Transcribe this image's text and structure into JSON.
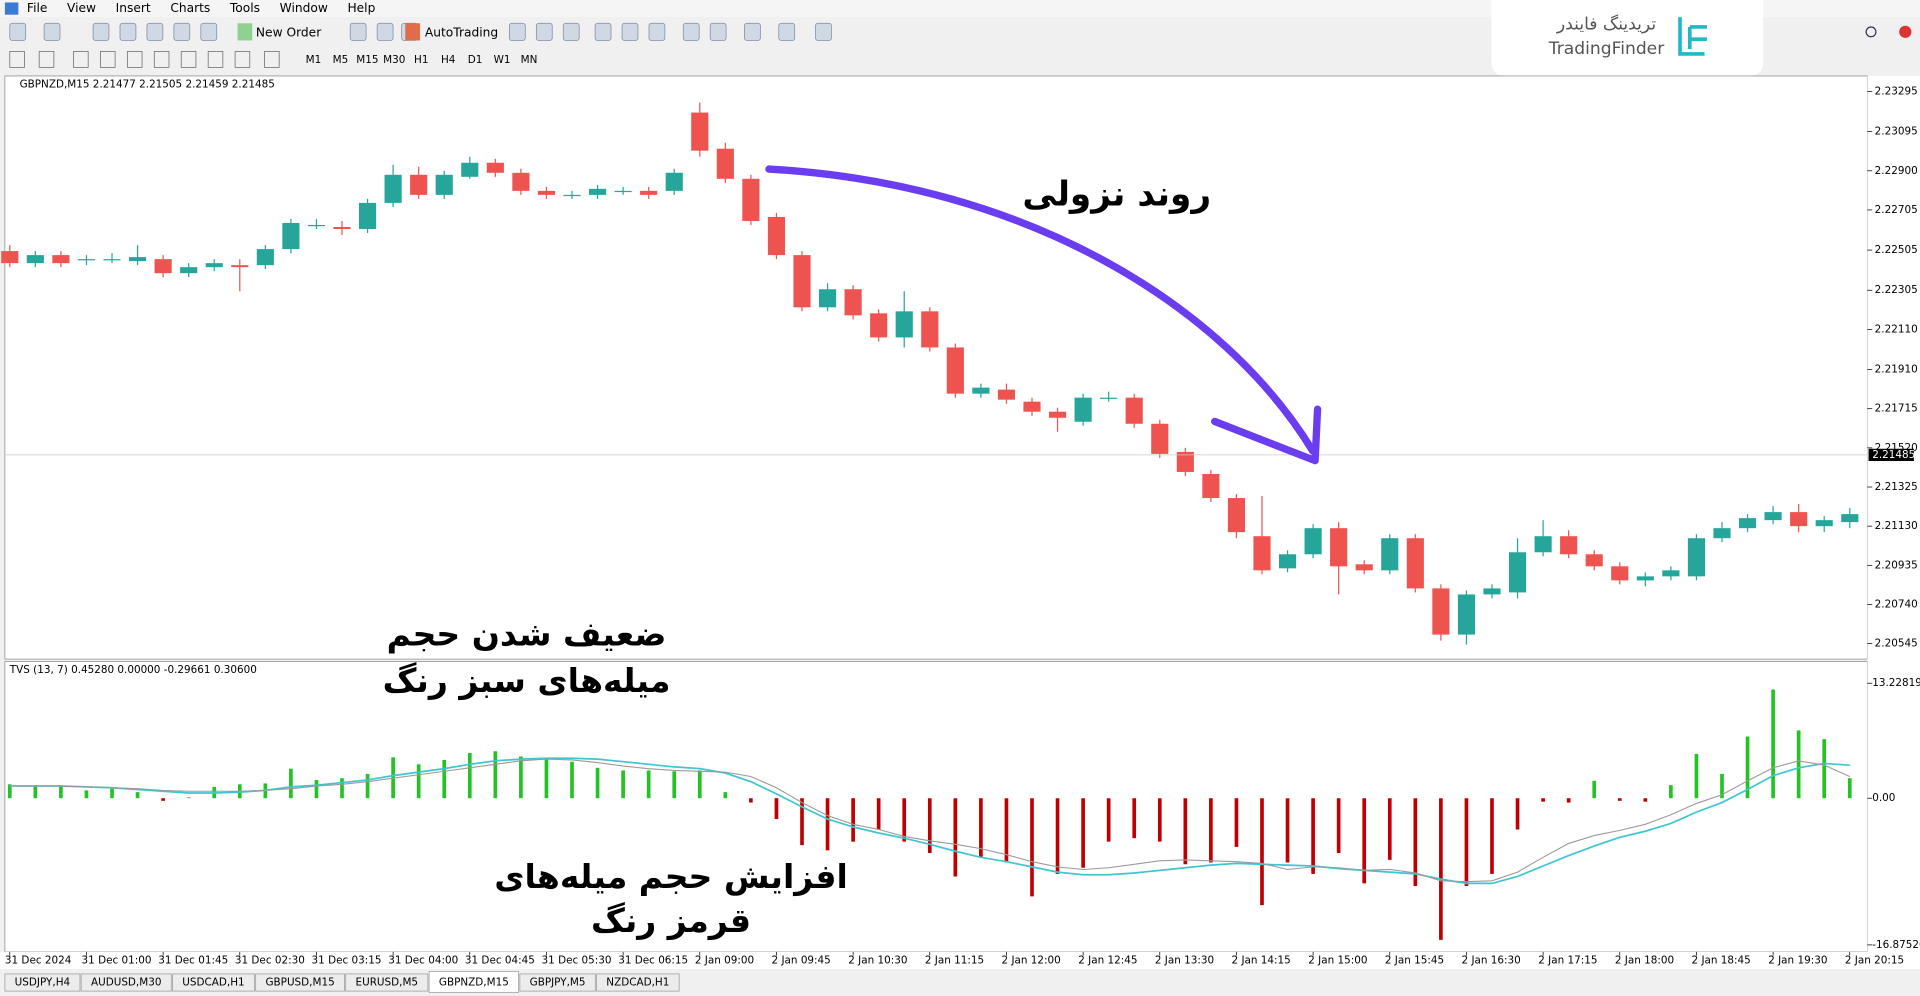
{
  "menu": [
    "File",
    "View",
    "Insert",
    "Charts",
    "Tools",
    "Window",
    "Help"
  ],
  "toolbar": {
    "new_order": "New Order",
    "auto_trading": "AutoTrading",
    "timeframes": [
      "M1",
      "M5",
      "M15",
      "M30",
      "H1",
      "H4",
      "D1",
      "W1",
      "MN"
    ]
  },
  "logo": {
    "fa": "تریدینگ فایندر",
    "en": "TradingFinder"
  },
  "chart_data": [
    {
      "type": "candlestick",
      "title": "GBPNZD,M15  2.21477 2.21505 2.21459 2.21485",
      "categories": [
        "31 Dec 2024",
        null,
        null,
        "31 Dec 01:00",
        null,
        null,
        "31 Dec 01:45",
        null,
        null,
        "31 Dec 02:30",
        null,
        null,
        "31 Dec 03:15",
        null,
        null,
        "31 Dec 04:00",
        null,
        null,
        "31 Dec 04:45",
        null,
        null,
        "31 Dec 05:30",
        null,
        null,
        "31 Dec 06:15",
        null,
        null,
        "2 Jan 09:00",
        null,
        null,
        "2 Jan 09:45",
        null,
        null,
        "2 Jan 10:30",
        null,
        null,
        "2 Jan 11:15",
        null,
        null,
        "2 Jan 12:00",
        null,
        null,
        "2 Jan 12:45",
        null,
        null,
        "2 Jan 13:30",
        null,
        null,
        "2 Jan 14:15",
        null,
        null,
        "2 Jan 15:00",
        null,
        null,
        "2 Jan 15:45",
        null,
        null,
        "2 Jan 16:30",
        null,
        null,
        "2 Jan 17:15",
        null,
        null,
        "2 Jan 18:00",
        null,
        null,
        "2 Jan 18:45",
        null,
        null,
        "2 Jan 19:30",
        null,
        null,
        "2 Jan 20:15"
      ],
      "open": [
        2.225,
        2.2244,
        2.2248,
        2.2246,
        2.2246,
        2.2245,
        2.2246,
        2.2239,
        2.2242,
        2.2243,
        2.2243,
        2.2251,
        2.2263,
        2.2262,
        2.2261,
        2.2274,
        2.2288,
        2.2278,
        2.2287,
        2.2294,
        2.2289,
        2.228,
        2.2278,
        2.2278,
        2.228,
        2.228,
        2.228,
        2.2319,
        2.2301,
        2.2286,
        2.2267,
        2.2248,
        2.2222,
        2.2231,
        2.2219,
        2.2207,
        2.222,
        2.2202,
        2.2179,
        2.2181,
        2.2175,
        2.217,
        2.2165,
        2.2177,
        2.2177,
        2.2164,
        2.215,
        2.2139,
        2.2127,
        2.2108,
        2.2092,
        2.2099,
        2.2112,
        2.2094,
        2.2091,
        2.2107,
        2.2082,
        2.2059,
        2.2079,
        2.208,
        2.21,
        2.2108,
        2.2099,
        2.2093,
        2.2086,
        2.2088,
        2.2088,
        2.2107,
        2.2112,
        2.2116,
        2.212,
        2.2113,
        2.2115
      ],
      "high": [
        2.2253,
        2.225,
        2.225,
        2.2248,
        2.2249,
        2.2253,
        2.2248,
        2.2244,
        2.2246,
        2.2246,
        2.2253,
        2.2266,
        2.2266,
        2.2265,
        2.2276,
        2.2293,
        2.2292,
        2.229,
        2.2297,
        2.2296,
        2.2291,
        2.2282,
        2.228,
        2.2283,
        2.2282,
        2.2282,
        2.2291,
        2.2324,
        2.2304,
        2.2288,
        2.2269,
        2.225,
        2.2234,
        2.2233,
        2.2221,
        2.223,
        2.2222,
        2.2204,
        2.2184,
        2.2184,
        2.2177,
        2.2172,
        2.2179,
        2.218,
        2.2179,
        2.2166,
        2.2152,
        2.2141,
        2.2129,
        2.2128,
        2.2101,
        2.2114,
        2.2115,
        2.2096,
        2.2109,
        2.2109,
        2.2084,
        2.2081,
        2.2084,
        2.2107,
        2.2116,
        2.2111,
        2.2101,
        2.2095,
        2.209,
        2.2093,
        2.2109,
        2.2115,
        2.2119,
        2.2123,
        2.2124,
        2.2118,
        2.2122
      ],
      "low": [
        2.2242,
        2.2242,
        2.2242,
        2.2243,
        2.2244,
        2.2243,
        2.2237,
        2.2237,
        2.224,
        2.223,
        2.2241,
        2.2249,
        2.2261,
        2.2258,
        2.2259,
        2.2272,
        2.2276,
        2.2276,
        2.2286,
        2.2287,
        2.2278,
        2.2276,
        2.2276,
        2.2276,
        2.2278,
        2.2276,
        2.2278,
        2.2297,
        2.2284,
        2.2263,
        2.2246,
        2.222,
        2.222,
        2.2216,
        2.2205,
        2.2202,
        2.22,
        2.2177,
        2.2177,
        2.2174,
        2.2168,
        2.216,
        2.2163,
        2.2175,
        2.2162,
        2.2147,
        2.2138,
        2.2125,
        2.2107,
        2.2089,
        2.209,
        2.2097,
        2.2079,
        2.2089,
        2.2089,
        2.208,
        2.2056,
        2.2054,
        2.2077,
        2.2077,
        2.2098,
        2.2097,
        2.2091,
        2.2084,
        2.2083,
        2.2086,
        2.2086,
        2.2105,
        2.211,
        2.2114,
        2.211,
        2.211,
        2.2112
      ],
      "close": [
        2.2244,
        2.2248,
        2.2244,
        2.2246,
        2.2246,
        2.2247,
        2.2239,
        2.2242,
        2.2244,
        2.2242,
        2.2251,
        2.2264,
        2.2263,
        2.2261,
        2.2274,
        2.2288,
        2.2278,
        2.2288,
        2.2294,
        2.2289,
        2.228,
        2.2278,
        2.2278,
        2.2281,
        2.228,
        2.2278,
        2.2289,
        2.23,
        2.2286,
        2.2265,
        2.2248,
        2.2222,
        2.2231,
        2.2218,
        2.2207,
        2.222,
        2.2202,
        2.2179,
        2.2182,
        2.2176,
        2.217,
        2.2167,
        2.2177,
        2.2177,
        2.2164,
        2.2149,
        2.214,
        2.2127,
        2.211,
        2.2091,
        2.2099,
        2.2112,
        2.2093,
        2.2091,
        2.2107,
        2.2082,
        2.2059,
        2.2079,
        2.2082,
        2.21,
        2.2108,
        2.2099,
        2.2093,
        2.2086,
        2.2088,
        2.2091,
        2.2107,
        2.2112,
        2.2117,
        2.212,
        2.2113,
        2.2116,
        2.2119
      ],
      "up_color": "#26a69a",
      "down_color": "#ef5350",
      "ylim": [
        2.20474,
        2.23354
      ],
      "yticks": [
        2.23295,
        2.23095,
        {
          "value": 2.229,
          "label": "2.22900"
        },
        2.22705,
        2.22505,
        2.22305,
        {
          "value": 2.2211,
          "label": "2.22110"
        },
        {
          "value": 2.2191,
          "label": "2.21910"
        },
        2.21715,
        {
          "value": 2.2152,
          "label": "2.21520"
        },
        2.21325,
        {
          "value": 2.2113,
          "label": "2.21130"
        },
        2.20935,
        {
          "value": 2.2074,
          "label": "2.20740"
        },
        2.20545
      ],
      "last_price": 2.21485,
      "grid": false,
      "annotations": [
        "روند نزولی",
        "ضعیف شدن حجم",
        "میله‌های سبز رنگ",
        "افزایش حجم میله‌های",
        "قرمز رنگ"
      ],
      "arrow_color": "#6a3df0"
    },
    {
      "type": "histogram",
      "title": "TVS (13, 7) 0.45280 0.00000 -0.29661 0.30600",
      "values": [
        1.6,
        1.5,
        1.5,
        0.9,
        1.1,
        0.7,
        -0.3,
        0.1,
        1.3,
        1.6,
        1.7,
        3.4,
        2.1,
        2.3,
        2.8,
        4.7,
        3.9,
        4.4,
        5.2,
        5.4,
        4.8,
        4.6,
        4.2,
        3.5,
        3.2,
        3.2,
        3.1,
        3.2,
        0.7,
        -0.5,
        -2.4,
        -5.4,
        -6.0,
        -5.0,
        -3.6,
        -5.0,
        -6.3,
        -9.0,
        -6.8,
        -7.4,
        -11.3,
        -8.7,
        -8.0,
        -5.0,
        -4.6,
        -5.0,
        -7.6,
        -7.4,
        -5.6,
        -12.3,
        -7.4,
        -8.7,
        -6.3,
        -9.8,
        -7.1,
        -10.1,
        -16.3,
        -10.1,
        -8.7,
        -3.6,
        -0.4,
        -0.5,
        2.0,
        -0.3,
        -0.4,
        1.5,
        5.1,
        2.8,
        7.1,
        12.5,
        7.8,
        6.8,
        2.3
      ],
      "up_color": "#22c322",
      "down_color": "#c00000",
      "series": [
        {
          "color": "#3cc6d2",
          "values": [
            1.4,
            1.4,
            1.4,
            1.3,
            1.2,
            1.0,
            0.8,
            0.6,
            0.6,
            0.7,
            0.9,
            1.3,
            1.5,
            1.8,
            2.1,
            2.6,
            3.0,
            3.4,
            3.9,
            4.3,
            4.5,
            4.6,
            4.6,
            4.5,
            4.2,
            3.9,
            3.6,
            3.4,
            2.9,
            1.9,
            0.5,
            -1.0,
            -2.4,
            -3.3,
            -4.0,
            -4.6,
            -5.3,
            -6.1,
            -6.8,
            -7.3,
            -7.9,
            -8.5,
            -8.8,
            -8.8,
            -8.6,
            -8.3,
            -8.0,
            -7.7,
            -7.5,
            -7.6,
            -7.7,
            -7.8,
            -8.1,
            -8.3,
            -8.5,
            -8.7,
            -9.3,
            -9.8,
            -9.8,
            -9.0,
            -7.8,
            -6.6,
            -5.5,
            -4.5,
            -3.8,
            -2.9,
            -1.6,
            -0.5,
            1.0,
            2.6,
            3.5,
            4.0,
            3.8
          ]
        },
        {
          "color": "#9a9a9a",
          "values": [
            1.4,
            1.4,
            1.4,
            1.3,
            1.2,
            1.1,
            0.9,
            0.8,
            0.8,
            0.8,
            0.9,
            1.1,
            1.4,
            1.6,
            1.9,
            2.3,
            2.7,
            3.1,
            3.5,
            3.9,
            4.3,
            4.5,
            4.4,
            4.1,
            3.7,
            3.4,
            3.2,
            3.1,
            3.0,
            2.5,
            1.2,
            -0.5,
            -2.0,
            -3.0,
            -3.6,
            -4.4,
            -4.9,
            -5.3,
            -5.8,
            -6.5,
            -7.3,
            -7.9,
            -8.2,
            -8.0,
            -7.6,
            -7.2,
            -7.1,
            -7.2,
            -7.3,
            -7.5,
            -8.2,
            -7.9,
            -8.0,
            -8.3,
            -8.2,
            -8.6,
            -9.5,
            -9.6,
            -9.5,
            -8.5,
            -6.8,
            -5.2,
            -4.3,
            -3.7,
            -3.0,
            -1.9,
            -0.6,
            0.4,
            2.0,
            3.5,
            4.3,
            3.8,
            2.5
          ]
        }
      ],
      "ylim": [
        -17.68,
        14.03
      ],
      "yticks": [
        13.22819,
        {
          "value": 0,
          "label": "0.00"
        },
        -16.87526
      ]
    }
  ],
  "tabs": [
    "USDJPY,H4",
    "AUDUSD,M30",
    "USDCAD,H1",
    "GBPUSD,M15",
    "EURUSD,M5",
    "GBPNZD,M15",
    "GBPJPY,M5",
    "NZDCAD,H1"
  ],
  "active_tab": 5
}
